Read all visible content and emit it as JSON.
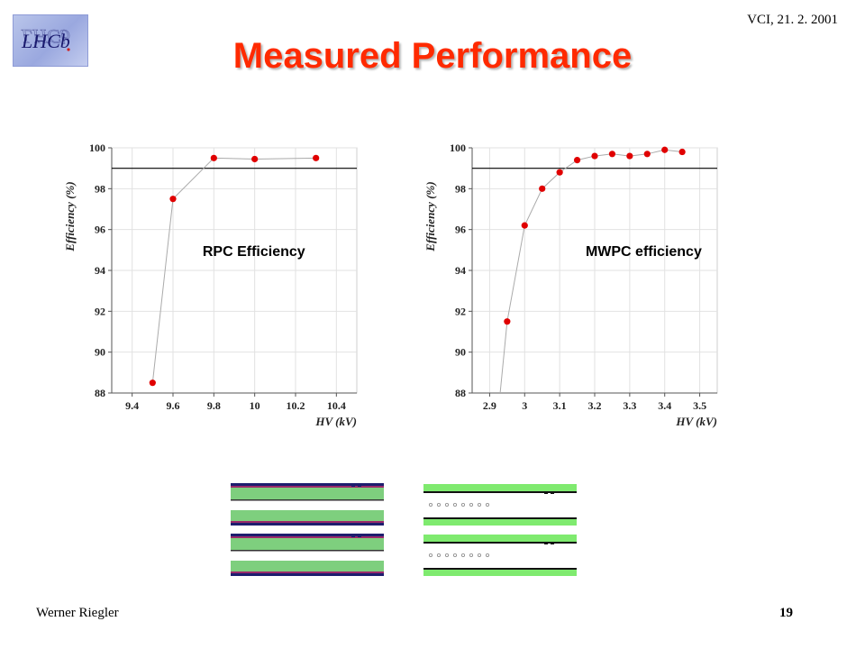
{
  "header": {
    "meeting": "VCI, 21. 2. 2001",
    "title": "Measured Performance",
    "logo_text": "LHCb"
  },
  "footer": {
    "author": "Werner Riegler",
    "page_number": "19"
  },
  "colors": {
    "title": "#ff2a00",
    "point": "#e00000",
    "connector": "#aaaaaa",
    "threshold_line": "#000000",
    "grid": "#e2e2e2",
    "gas_gap_green": "#7ecf7e",
    "mwpc_green": "#7fea6f",
    "electrode_navy": "#1d1d6e"
  },
  "chart_data": [
    {
      "type": "scatter",
      "label": "RPC Efficiency",
      "xlabel": "HV (kV)",
      "ylabel": "Efficiency (%)",
      "xlim": [
        9.3,
        10.5
      ],
      "ylim": [
        88,
        100
      ],
      "x_ticks": [
        9.4,
        9.6,
        9.8,
        10,
        10.2,
        10.4
      ],
      "x_tick_labels": [
        "9.4",
        "9.6",
        "9.8",
        "10",
        "10.2",
        "10.4"
      ],
      "y_ticks": [
        88,
        90,
        92,
        94,
        96,
        98,
        100
      ],
      "y_tick_labels": [
        "88",
        "90",
        "92",
        "94",
        "96",
        "98",
        "100"
      ],
      "grid": true,
      "threshold": 99,
      "series": [
        {
          "x": [
            9.5,
            9.6,
            9.8,
            10.0,
            10.3
          ],
          "y": [
            88.5,
            97.5,
            99.5,
            99.45,
            99.5
          ]
        }
      ]
    },
    {
      "type": "scatter",
      "label": "MWPC efficiency",
      "xlabel": "HV (kV)",
      "ylabel": "Efficiency (%)",
      "xlim": [
        2.85,
        3.55
      ],
      "ylim": [
        88,
        100
      ],
      "x_ticks": [
        2.9,
        3.0,
        3.1,
        3.2,
        3.3,
        3.4,
        3.5
      ],
      "x_tick_labels": [
        "2.9",
        "3",
        "3.1",
        "3.2",
        "3.3",
        "3.4",
        "3.5"
      ],
      "y_ticks": [
        88,
        90,
        92,
        94,
        96,
        98,
        100
      ],
      "y_tick_labels": [
        "88",
        "90",
        "92",
        "94",
        "96",
        "98",
        "100"
      ],
      "grid": true,
      "threshold": 99,
      "series": [
        {
          "x": [
            2.95,
            3.0,
            3.05,
            3.1,
            3.15,
            3.2,
            3.25,
            3.3,
            3.35,
            3.4,
            3.45
          ],
          "y": [
            91.5,
            96.2,
            98.0,
            98.8,
            99.4,
            99.6,
            99.7,
            99.6,
            99.7,
            99.9,
            99.8
          ]
        }
      ]
    }
  ]
}
